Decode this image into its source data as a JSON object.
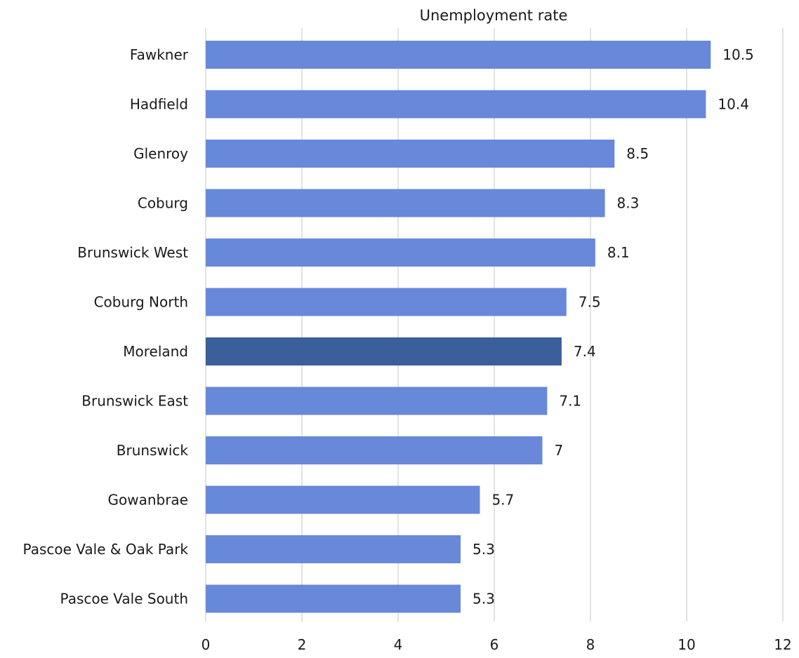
{
  "chart_data": {
    "type": "bar",
    "orientation": "horizontal",
    "title": "Unemployment rate",
    "categories": [
      "Fawkner",
      "Hadfield",
      "Glenroy",
      "Coburg",
      "Brunswick West",
      "Coburg North",
      "Moreland",
      "Brunswick East",
      "Brunswick",
      "Gowanbrae",
      "Pascoe Vale & Oak Park",
      "Pascoe Vale South"
    ],
    "values": [
      10.5,
      10.4,
      8.5,
      8.3,
      8.1,
      7.5,
      7.4,
      7.1,
      7,
      5.7,
      5.3,
      5.3
    ],
    "value_labels": [
      "10.5",
      "10.4",
      "8.5",
      "8.3",
      "8.1",
      "7.5",
      "7.4",
      "7.1",
      "7",
      "5.7",
      "5.3",
      "5.3"
    ],
    "highlight_category": "Moreland",
    "xlim": [
      0,
      12
    ],
    "x_ticks": [
      0,
      2,
      4,
      6,
      8,
      10,
      12
    ],
    "x_tick_labels": [
      "0",
      "2",
      "4",
      "6",
      "8",
      "10",
      "12"
    ],
    "grid": true,
    "legend": "none",
    "colors": {
      "bar": "#6888d9",
      "highlight": "#3a5f9a",
      "grid": "#d9d9d9",
      "text": "#1a1a1a"
    }
  }
}
